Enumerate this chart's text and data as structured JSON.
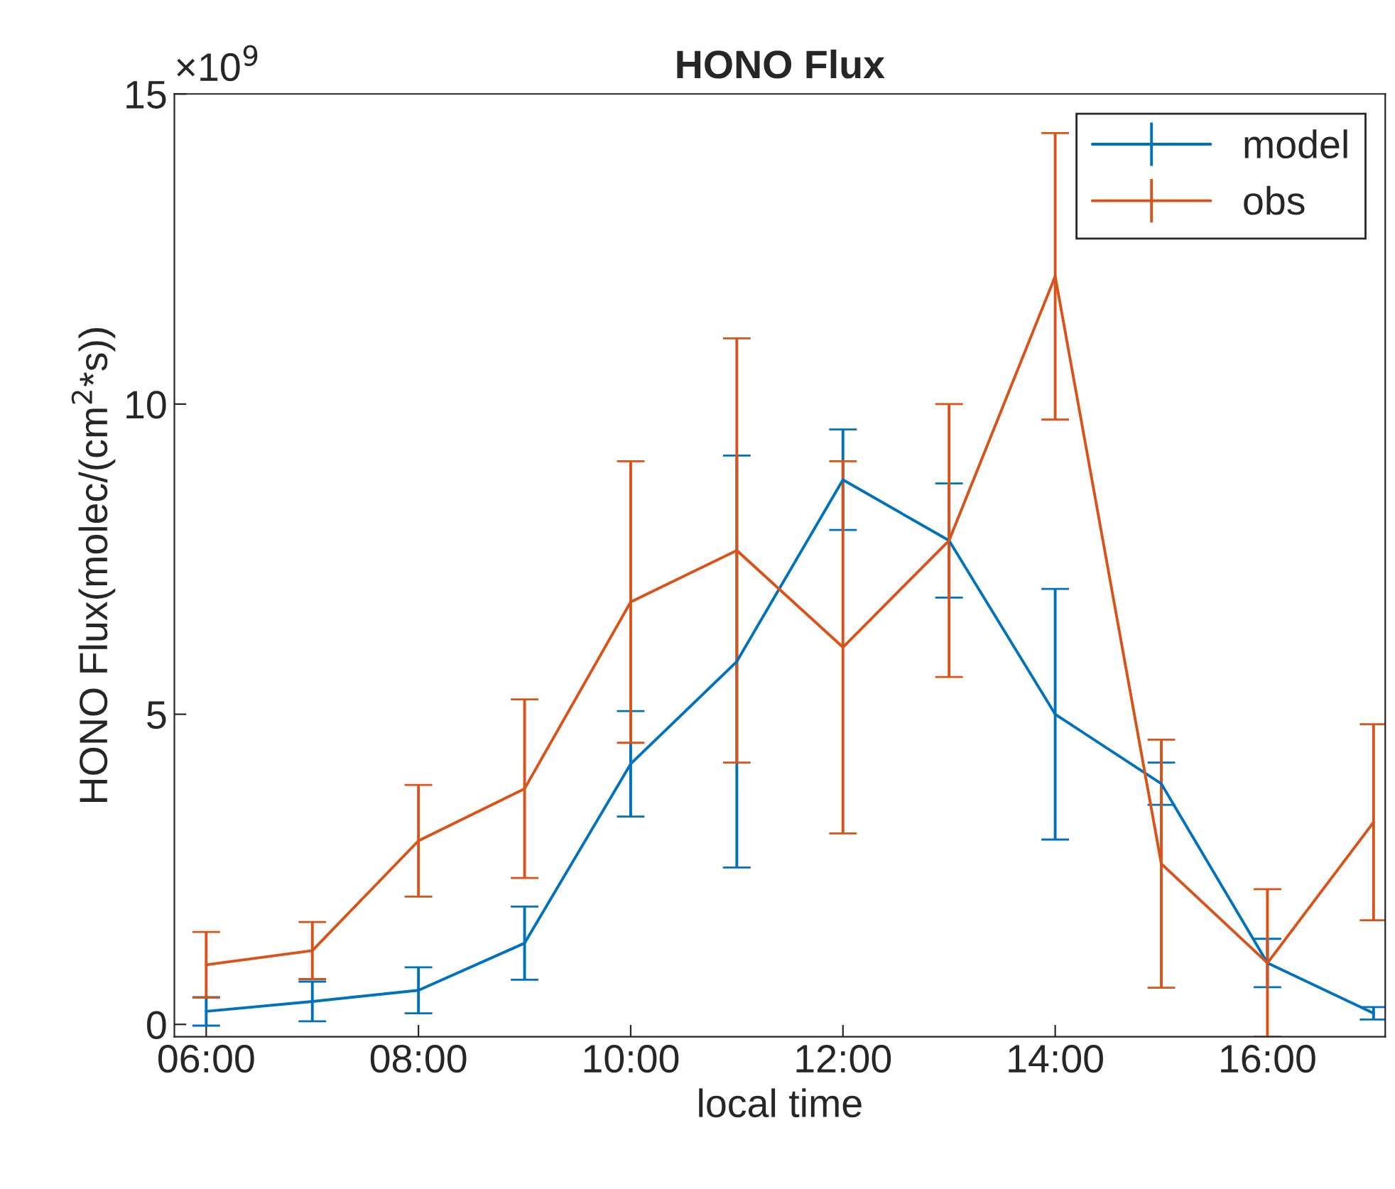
{
  "chart_data": {
    "type": "line",
    "title": "HONO Flux",
    "xlabel": "local time",
    "ylabel": "HONO Flux(molec/(cm$^{2}$*s))",
    "annotations": [
      "×10$^{9}$"
    ],
    "x": [
      6,
      7,
      8,
      9,
      10,
      11,
      12,
      13,
      14,
      15,
      16,
      17
    ],
    "series": [
      {
        "name": "model",
        "color": "#0072bd",
        "values": [
          0.21,
          0.37,
          0.55,
          1.31,
          4.2,
          5.85,
          8.78,
          7.8,
          5.0,
          3.88,
          0.99,
          0.18
        ],
        "errors": [
          0.23,
          0.32,
          0.37,
          0.59,
          0.85,
          3.32,
          0.81,
          0.92,
          2.02,
          0.34,
          0.39,
          0.1
        ]
      },
      {
        "name": "obs",
        "color": "#d95319",
        "values": [
          0.96,
          1.19,
          2.96,
          3.8,
          6.81,
          7.64,
          6.08,
          7.8,
          12.06,
          2.59,
          0.99,
          3.26
        ],
        "errors": [
          0.53,
          0.46,
          0.9,
          1.44,
          2.27,
          3.42,
          3.0,
          2.2,
          2.31,
          2.0,
          1.19,
          1.58
        ]
      }
    ],
    "xlim": [
      5.7,
      17.11
    ],
    "ylim": [
      -0.2,
      15
    ],
    "xticks": [
      {
        "value": 6,
        "label": "06:00"
      },
      {
        "value": 8,
        "label": "08:00"
      },
      {
        "value": 10,
        "label": "10:00"
      },
      {
        "value": 12,
        "label": "12:00"
      },
      {
        "value": 14,
        "label": "14:00"
      },
      {
        "value": 16,
        "label": "16:00"
      }
    ],
    "yticks": [
      0,
      5,
      10,
      15
    ],
    "grid": false,
    "legend": "top right",
    "marker": "none",
    "line_style": "solid"
  }
}
